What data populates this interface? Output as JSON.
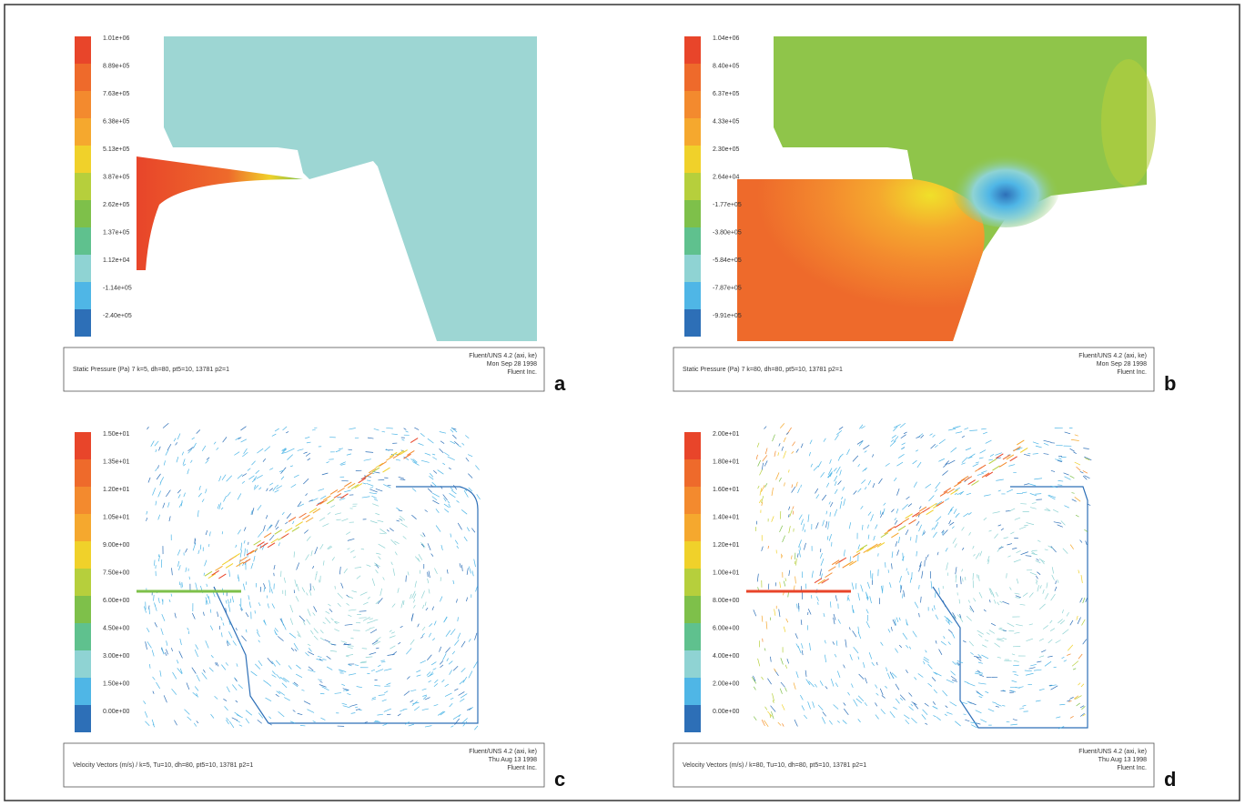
{
  "panels": [
    {
      "letter": "a",
      "colorbar_labels": [
        "1.01e+06",
        "8.89e+05",
        "7.63e+05",
        "6.38e+05",
        "5.13e+05",
        "3.87e+05",
        "2.62e+05",
        "1.37e+05",
        "1.12e+04",
        "-1.14e+05",
        "-2.40e+05"
      ],
      "caption": "Static Pressure (Pa) 7 k=5, dh=80, pt5=10, 13781 p2=1",
      "footer": [
        "Fluent/UNS 4.2 (axi, ke)",
        "Mon Sep 28 1998",
        "Fluent Inc."
      ]
    },
    {
      "letter": "b",
      "colorbar_labels": [
        "1.04e+06",
        "8.40e+05",
        "6.37e+05",
        "4.33e+05",
        "2.30e+05",
        "2.64e+04",
        "-1.77e+05",
        "-3.80e+05",
        "-5.84e+05",
        "-7.87e+05",
        "-9.91e+05"
      ],
      "caption": "Static Pressure (Pa) 7 k=80, dh=80, pt5=10, 13781 p2=1",
      "footer": [
        "Fluent/UNS 4.2 (axi, ke)",
        "Mon Sep 28 1998",
        "Fluent Inc."
      ]
    },
    {
      "letter": "c",
      "colorbar_labels": [
        "1.50e+01",
        "1.35e+01",
        "1.20e+01",
        "1.05e+01",
        "9.00e+00",
        "7.50e+00",
        "6.00e+00",
        "4.50e+00",
        "3.00e+00",
        "1.50e+00",
        "0.00e+00"
      ],
      "caption": "Velocity Vectors (m/s) / k=5, Tu=10, dh=80, pt5=10, 13781 p2=1",
      "footer": [
        "Fluent/UNS 4.2 (axi, ke)",
        "Thu Aug 13 1998",
        "Fluent Inc."
      ]
    },
    {
      "letter": "d",
      "colorbar_labels": [
        "2.00e+01",
        "1.80e+01",
        "1.60e+01",
        "1.40e+01",
        "1.20e+01",
        "1.00e+01",
        "8.00e+00",
        "6.00e+00",
        "4.00e+00",
        "2.00e+00",
        "0.00e+00"
      ],
      "caption": "Velocity Vectors (m/s) / k=80, Tu=10, dh=80, pt5=10, 13781 p2=1",
      "footer": [
        "Fluent/UNS 4.2 (axi, ke)",
        "Thu Aug 13 1998",
        "Fluent Inc."
      ]
    }
  ]
}
